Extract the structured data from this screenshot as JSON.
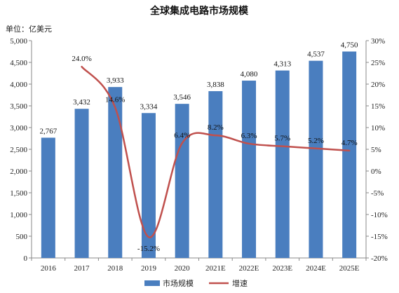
{
  "chart_data": {
    "type": "bar",
    "title": "全球集成电路市场规模",
    "unit_label": "单位：亿美元",
    "categories": [
      "2016",
      "2017",
      "2018",
      "2019",
      "2020",
      "2021E",
      "2022E",
      "2023E",
      "2024E",
      "2025E"
    ],
    "series": [
      {
        "name": "市场规模",
        "type": "bar",
        "axis": "left",
        "color": "#4a7ebf",
        "values": [
          2767,
          3432,
          3933,
          3334,
          3546,
          3838,
          4080,
          4313,
          4537,
          4750
        ],
        "labels": [
          "2,767",
          "3,432",
          "3,933",
          "3,334",
          "3,546",
          "3,838",
          "4,080",
          "4,313",
          "4,537",
          "4,750"
        ]
      },
      {
        "name": "增速",
        "type": "line",
        "axis": "right",
        "color": "#c0504d",
        "values": [
          null,
          24.0,
          14.6,
          -15.2,
          6.4,
          8.2,
          6.3,
          5.7,
          5.2,
          4.7
        ],
        "labels": [
          "",
          "24.0%",
          "14.6%",
          "-15.2%",
          "6.4%",
          "8.2%",
          "6.3%",
          "5.7%",
          "5.2%",
          "4.7%"
        ]
      }
    ],
    "y_left": {
      "ylim": [
        0,
        5000
      ],
      "ticks": [
        "0",
        "500",
        "1,000",
        "1,500",
        "2,000",
        "2,500",
        "3,000",
        "3,500",
        "4,000",
        "4,500",
        "5,000"
      ]
    },
    "y_right": {
      "ylim": [
        -20,
        30
      ],
      "ticks": [
        "-20%",
        "-15%",
        "-10%",
        "-5%",
        "0%",
        "5%",
        "10%",
        "15%",
        "20%",
        "25%",
        "30%"
      ]
    },
    "grid": false,
    "legend": "bottom"
  }
}
